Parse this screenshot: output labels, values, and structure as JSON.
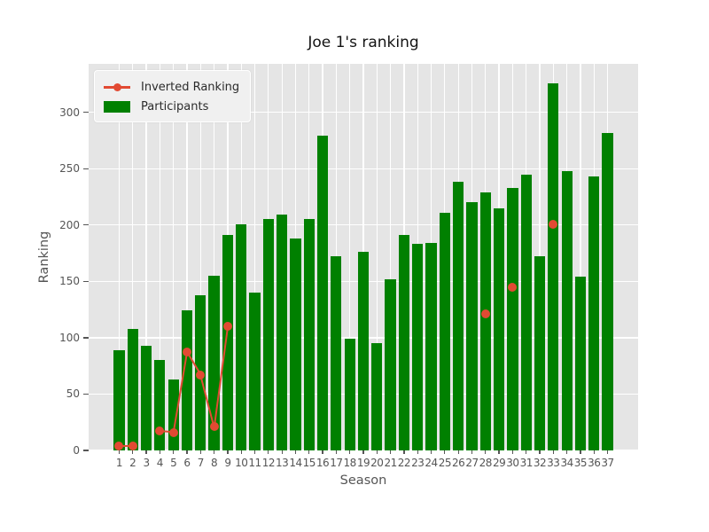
{
  "title": "Joe 1's ranking",
  "axes": {
    "xlabel": "Season",
    "ylabel": "Ranking"
  },
  "legend": {
    "items": [
      {
        "label": "Inverted Ranking",
        "marker": "line-with-dot",
        "color": "#E24A33"
      },
      {
        "label": "Participants",
        "marker": "rect",
        "color": "#008000"
      }
    ]
  },
  "colors": {
    "bar": "#008000",
    "line": "#E24A33",
    "plot_background": "#e5e5e5",
    "grid": "#ffffff",
    "tick_text": "#555555",
    "title_text": "#141414"
  },
  "chart_data": {
    "type": "bar",
    "title": "Joe 1's ranking",
    "xlabel": "Season",
    "ylabel": "Ranking",
    "categories": [
      1,
      2,
      3,
      4,
      5,
      6,
      7,
      8,
      9,
      10,
      11,
      12,
      13,
      14,
      15,
      16,
      17,
      18,
      19,
      20,
      21,
      22,
      23,
      24,
      25,
      26,
      27,
      28,
      29,
      30,
      31,
      32,
      33,
      34,
      35,
      36,
      37
    ],
    "series": [
      {
        "name": "Participants",
        "type": "bar",
        "color": "#008000",
        "values": [
          89,
          108,
          93,
          80,
          63,
          124,
          138,
          155,
          191,
          201,
          140,
          205,
          209,
          188,
          205,
          279,
          172,
          99,
          176,
          95,
          152,
          191,
          183,
          184,
          211,
          238,
          220,
          229,
          215,
          233,
          245,
          172,
          326,
          248,
          154,
          243,
          282
        ]
      },
      {
        "name": "Inverted Ranking",
        "type": "line",
        "color": "#E24A33",
        "values": [
          4,
          4,
          null,
          17,
          16,
          87,
          67,
          21,
          110,
          null,
          null,
          null,
          null,
          null,
          null,
          null,
          null,
          null,
          null,
          null,
          null,
          null,
          null,
          null,
          null,
          null,
          null,
          121,
          null,
          145,
          null,
          null,
          201,
          null,
          null,
          null,
          null
        ]
      }
    ],
    "yticks": [
      0,
      50,
      100,
      150,
      200,
      250,
      300
    ],
    "ylim": [
      0,
      343
    ],
    "xlim": [
      -1.25,
      39.25
    ],
    "bar_width_fraction": 0.8,
    "grid": true,
    "legend_position": "upper left"
  }
}
